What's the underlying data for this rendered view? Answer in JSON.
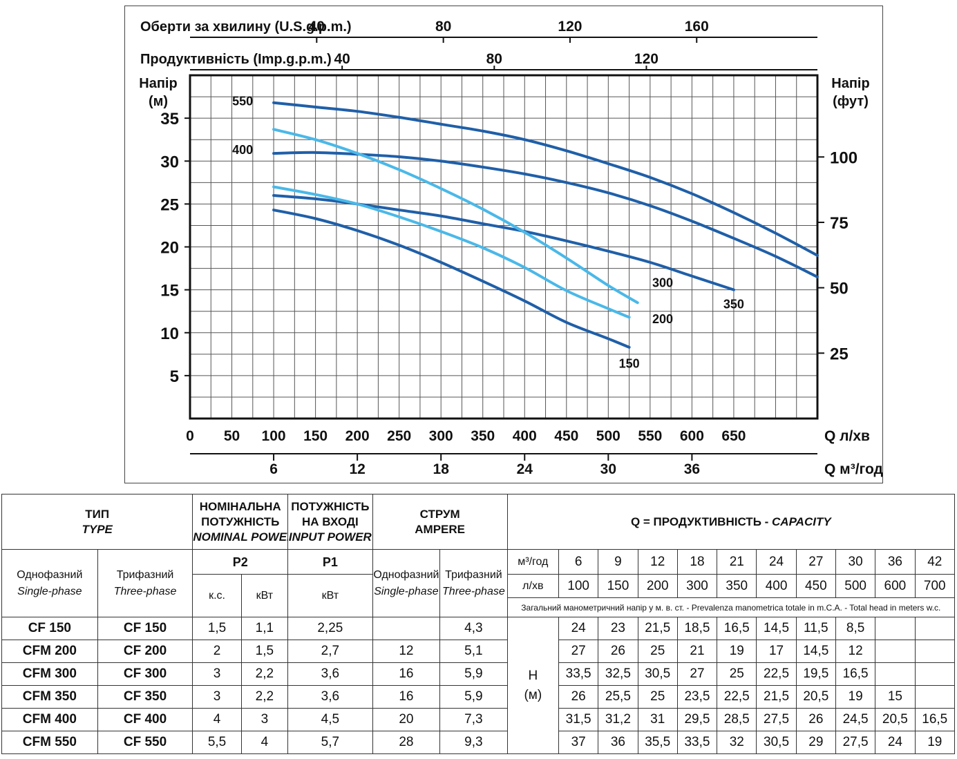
{
  "chart_data": {
    "type": "line",
    "top_axis_1": {
      "label": "Оберти за хвилину (U.S.g.p.m.)",
      "ticks": [
        "40",
        "80",
        "120",
        "160"
      ]
    },
    "top_axis_2": {
      "label": "Продуктивність (Imp.g.p.m.)",
      "ticks": [
        "40",
        "80",
        "120"
      ]
    },
    "y_left": {
      "label_line1": "Напір",
      "label_line2": "(м)",
      "ticks": [
        "5",
        "10",
        "15",
        "20",
        "25",
        "30",
        "35"
      ],
      "ylim": [
        0,
        40
      ]
    },
    "y_right": {
      "label_line1": "Напір",
      "label_line2": "(фут)",
      "ticks": [
        "25",
        "50",
        "75",
        "100"
      ]
    },
    "x_bottom_1": {
      "label": "Q л/хв",
      "ticks": [
        "0",
        "50",
        "100",
        "150",
        "200",
        "250",
        "300",
        "350",
        "400",
        "450",
        "500",
        "550",
        "600",
        "650"
      ],
      "xlim": [
        0,
        750
      ]
    },
    "x_bottom_2": {
      "label": "Q м³/год",
      "ticks": [
        "6",
        "12",
        "18",
        "24",
        "30",
        "36"
      ]
    },
    "grid": true,
    "series": [
      {
        "name": "550",
        "color": "#1f5fa8",
        "points": [
          [
            100,
            36.8
          ],
          [
            150,
            36.3
          ],
          [
            200,
            35.8
          ],
          [
            250,
            35.1
          ],
          [
            300,
            34.3
          ],
          [
            350,
            33.5
          ],
          [
            400,
            32.5
          ],
          [
            450,
            31.2
          ],
          [
            500,
            29.7
          ],
          [
            550,
            28.1
          ],
          [
            600,
            26.2
          ],
          [
            650,
            24.0
          ],
          [
            700,
            21.6
          ],
          [
            750,
            19.0
          ]
        ]
      },
      {
        "name": "400",
        "color": "#1f5fa8",
        "points": [
          [
            100,
            30.9
          ],
          [
            150,
            31.0
          ],
          [
            200,
            30.8
          ],
          [
            250,
            30.5
          ],
          [
            300,
            30.0
          ],
          [
            350,
            29.3
          ],
          [
            400,
            28.5
          ],
          [
            450,
            27.5
          ],
          [
            500,
            26.3
          ],
          [
            550,
            24.8
          ],
          [
            600,
            23.0
          ],
          [
            650,
            21.0
          ],
          [
            700,
            18.9
          ],
          [
            750,
            16.5
          ]
        ]
      },
      {
        "name": "350",
        "color": "#1f5fa8",
        "points": [
          [
            100,
            26.0
          ],
          [
            150,
            25.6
          ],
          [
            200,
            25.0
          ],
          [
            250,
            24.3
          ],
          [
            300,
            23.6
          ],
          [
            350,
            22.7
          ],
          [
            400,
            21.8
          ],
          [
            450,
            20.7
          ],
          [
            500,
            19.5
          ],
          [
            550,
            18.2
          ],
          [
            600,
            16.6
          ],
          [
            650,
            15.0
          ]
        ]
      },
      {
        "name": "300",
        "color": "#4ab8e8",
        "points": [
          [
            100,
            33.7
          ],
          [
            150,
            32.5
          ],
          [
            200,
            30.9
          ],
          [
            250,
            29.0
          ],
          [
            300,
            26.8
          ],
          [
            350,
            24.4
          ],
          [
            400,
            21.7
          ],
          [
            450,
            18.7
          ],
          [
            500,
            15.5
          ],
          [
            535,
            13.5
          ]
        ]
      },
      {
        "name": "200",
        "color": "#4ab8e8",
        "points": [
          [
            100,
            27.0
          ],
          [
            150,
            26.1
          ],
          [
            200,
            25.0
          ],
          [
            250,
            23.5
          ],
          [
            300,
            21.8
          ],
          [
            350,
            19.9
          ],
          [
            400,
            17.6
          ],
          [
            450,
            14.9
          ],
          [
            500,
            12.8
          ],
          [
            525,
            11.8
          ]
        ]
      },
      {
        "name": "150",
        "color": "#1f5fa8",
        "points": [
          [
            100,
            24.3
          ],
          [
            150,
            23.3
          ],
          [
            200,
            21.9
          ],
          [
            250,
            20.2
          ],
          [
            300,
            18.2
          ],
          [
            350,
            16.0
          ],
          [
            400,
            13.7
          ],
          [
            450,
            11.2
          ],
          [
            500,
            9.3
          ],
          [
            525,
            8.3
          ]
        ]
      }
    ]
  },
  "table": {
    "header": {
      "type_ua": "ТИП",
      "type_en": "TYPE",
      "nominal_ua": "НОМІНАЛЬНА ПОТУЖНІСТЬ",
      "nominal_ua_1": "НОМІНАЛЬНА",
      "nominal_ua_2": "ПОТУЖНІСТЬ",
      "nominal_en": "NOMINAL POWER",
      "input_ua_1": "ПОТУЖНІСТЬ",
      "input_ua_2": "НА ВХОДІ",
      "input_en": "INPUT POWER",
      "ampere_ua": "СТРУМ",
      "ampere_en": "AMPERE",
      "capacity_ua": "Q = ПРОДУКТИВНІСТЬ - ",
      "capacity_en": "CAPACITY",
      "single_ua": "Однофазний",
      "single_en": "Single-phase",
      "three_ua": "Трифазний",
      "three_en": "Three-phase",
      "p2": "P2",
      "p1": "P1",
      "hp": "к.с.",
      "kw": "кВт",
      "kw_in": "кВт",
      "m3h": "м³/год",
      "lmin": "л/хв",
      "note": "Загальний манометричний напір у м. в. ст. - Prevalenza manometrica totale in m.C.A. - Total head in meters w.c.",
      "h": "H",
      "h_unit": "(м)"
    },
    "capacity_m3h": [
      "6",
      "9",
      "12",
      "18",
      "21",
      "24",
      "27",
      "30",
      "36",
      "42"
    ],
    "capacity_lmin": [
      "100",
      "150",
      "200",
      "300",
      "350",
      "400",
      "450",
      "500",
      "600",
      "700"
    ],
    "rows": [
      {
        "single": "CF 150",
        "three": "CF 150",
        "hp": "1,5",
        "kw": "1,1",
        "p1": "2,25",
        "amp_single": "",
        "amp_three": "4,3",
        "heads": [
          "24",
          "23",
          "21,5",
          "18,5",
          "16,5",
          "14,5",
          "11,5",
          "8,5",
          "",
          ""
        ]
      },
      {
        "single": "CFM 200",
        "three": "CF 200",
        "hp": "2",
        "kw": "1,5",
        "p1": "2,7",
        "amp_single": "12",
        "amp_three": "5,1",
        "heads": [
          "27",
          "26",
          "25",
          "21",
          "19",
          "17",
          "14,5",
          "12",
          "",
          ""
        ]
      },
      {
        "single": "CFM 300",
        "three": "CF 300",
        "hp": "3",
        "kw": "2,2",
        "p1": "3,6",
        "amp_single": "16",
        "amp_three": "5,9",
        "heads": [
          "33,5",
          "32,5",
          "30,5",
          "27",
          "25",
          "22,5",
          "19,5",
          "16,5",
          "",
          ""
        ]
      },
      {
        "single": "CFM 350",
        "three": "CF 350",
        "hp": "3",
        "kw": "2,2",
        "p1": "3,6",
        "amp_single": "16",
        "amp_three": "5,9",
        "heads": [
          "26",
          "25,5",
          "25",
          "23,5",
          "22,5",
          "21,5",
          "20,5",
          "19",
          "15",
          ""
        ]
      },
      {
        "single": "CFM 400",
        "three": "CF 400",
        "hp": "4",
        "kw": "3",
        "p1": "4,5",
        "amp_single": "20",
        "amp_three": "7,3",
        "heads": [
          "31,5",
          "31,2",
          "31",
          "29,5",
          "28,5",
          "27,5",
          "26",
          "24,5",
          "20,5",
          "16,5"
        ]
      },
      {
        "single": "CFM 550",
        "three": "CF 550",
        "hp": "5,5",
        "kw": "4",
        "p1": "5,7",
        "amp_single": "28",
        "amp_three": "9,3",
        "heads": [
          "37",
          "36",
          "35,5",
          "33,5",
          "32",
          "30,5",
          "29",
          "27,5",
          "24",
          "19"
        ]
      }
    ]
  }
}
